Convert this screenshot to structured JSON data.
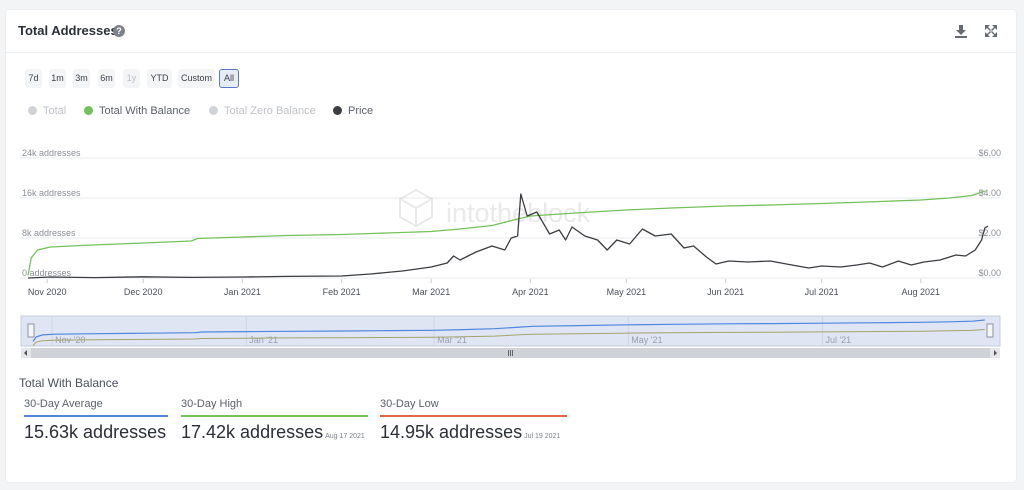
{
  "header": {
    "title": "Total Addresses",
    "help_icon": "question-circle-icon",
    "download_icon": "download-icon",
    "expand_icon": "expand-icon"
  },
  "ranges": [
    {
      "label": "7d",
      "state": "normal"
    },
    {
      "label": "1m",
      "state": "normal"
    },
    {
      "label": "3m",
      "state": "normal"
    },
    {
      "label": "6m",
      "state": "normal"
    },
    {
      "label": "1y",
      "state": "disabled"
    },
    {
      "label": "YTD",
      "state": "normal"
    },
    {
      "label": "Custom",
      "state": "normal"
    },
    {
      "label": "All",
      "state": "active"
    }
  ],
  "legend": [
    {
      "label": "Total",
      "color": "#cfd2d6",
      "active": false
    },
    {
      "label": "Total With Balance",
      "color": "#74c15a",
      "active": true
    },
    {
      "label": "Total Zero Balance",
      "color": "#cfd2d6",
      "active": false
    },
    {
      "label": "Price",
      "color": "#3b3d42",
      "active": true
    }
  ],
  "watermark": "intotheblock",
  "colors": {
    "with_balance": "#74c15a",
    "price": "#3b3d42",
    "navigator_blue": "#4f86e0",
    "navigator_olive": "#a3a46b",
    "average": "#4f86e0",
    "high": "#74c15a",
    "low": "#e0664a"
  },
  "chart_data": {
    "type": "line",
    "x_tick_labels": [
      "Nov 2020",
      "Dec 2020",
      "Jan 2021",
      "Feb 2021",
      "Mar 2021",
      "Apr 2021",
      "May 2021",
      "Jun 2021",
      "Jul 2021",
      "Aug 2021"
    ],
    "y_left_ticks": [
      "0 addresses",
      "8k addresses",
      "16k addresses",
      "24k addresses"
    ],
    "y_right_ticks": [
      "$0.00",
      "$2.00",
      "$4.00",
      "$6.00"
    ],
    "y_left_range": [
      0,
      24000
    ],
    "y_right_range": [
      0,
      6
    ],
    "x_range": [
      "2020-10-26",
      "2021-08-22"
    ],
    "grid": true,
    "series": [
      {
        "name": "Total With Balance",
        "axis": "left",
        "points": [
          [
            "2020-10-26",
            500
          ],
          [
            "2020-10-27",
            4000
          ],
          [
            "2020-10-29",
            5600
          ],
          [
            "2020-11-02",
            6200
          ],
          [
            "2020-11-15",
            6600
          ],
          [
            "2020-12-01",
            7000
          ],
          [
            "2020-12-16",
            7400
          ],
          [
            "2020-12-18",
            7900
          ],
          [
            "2021-01-01",
            8200
          ],
          [
            "2021-01-15",
            8500
          ],
          [
            "2021-02-01",
            8700
          ],
          [
            "2021-02-15",
            9000
          ],
          [
            "2021-03-01",
            9300
          ],
          [
            "2021-03-10",
            9800
          ],
          [
            "2021-03-20",
            10500
          ],
          [
            "2021-03-28",
            11800
          ],
          [
            "2021-04-01",
            12400
          ],
          [
            "2021-04-15",
            13000
          ],
          [
            "2021-05-01",
            13600
          ],
          [
            "2021-05-15",
            14000
          ],
          [
            "2021-06-01",
            14400
          ],
          [
            "2021-06-15",
            14600
          ],
          [
            "2021-07-01",
            14900
          ],
          [
            "2021-07-15",
            15200
          ],
          [
            "2021-08-01",
            15600
          ],
          [
            "2021-08-10",
            16000
          ],
          [
            "2021-08-17",
            16500
          ],
          [
            "2021-08-21",
            17400
          ]
        ]
      },
      {
        "name": "Price",
        "axis": "right",
        "points": [
          [
            "2020-10-26",
            0.0
          ],
          [
            "2020-11-02",
            0.05
          ],
          [
            "2020-11-16",
            0.02
          ],
          [
            "2020-12-01",
            0.06
          ],
          [
            "2020-12-16",
            0.03
          ],
          [
            "2021-01-01",
            0.05
          ],
          [
            "2021-01-15",
            0.08
          ],
          [
            "2021-02-01",
            0.1
          ],
          [
            "2021-02-10",
            0.2
          ],
          [
            "2021-02-20",
            0.35
          ],
          [
            "2021-03-01",
            0.55
          ],
          [
            "2021-03-06",
            0.75
          ],
          [
            "2021-03-08",
            1.1
          ],
          [
            "2021-03-10",
            0.9
          ],
          [
            "2021-03-15",
            1.3
          ],
          [
            "2021-03-20",
            1.6
          ],
          [
            "2021-03-24",
            1.4
          ],
          [
            "2021-03-26",
            2.0
          ],
          [
            "2021-03-28",
            2.1
          ],
          [
            "2021-03-29",
            4.2
          ],
          [
            "2021-03-31",
            3.1
          ],
          [
            "2021-04-03",
            3.3
          ],
          [
            "2021-04-07",
            2.2
          ],
          [
            "2021-04-10",
            2.4
          ],
          [
            "2021-04-12",
            1.9
          ],
          [
            "2021-04-14",
            2.55
          ],
          [
            "2021-04-18",
            2.1
          ],
          [
            "2021-04-22",
            1.9
          ],
          [
            "2021-04-25",
            1.4
          ],
          [
            "2021-04-28",
            1.9
          ],
          [
            "2021-05-02",
            1.7
          ],
          [
            "2021-05-06",
            2.45
          ],
          [
            "2021-05-10",
            2.1
          ],
          [
            "2021-05-15",
            2.2
          ],
          [
            "2021-05-19",
            1.5
          ],
          [
            "2021-05-22",
            1.6
          ],
          [
            "2021-05-26",
            1.05
          ],
          [
            "2021-05-29",
            0.7
          ],
          [
            "2021-06-02",
            0.85
          ],
          [
            "2021-06-08",
            0.8
          ],
          [
            "2021-06-15",
            0.85
          ],
          [
            "2021-06-20",
            0.7
          ],
          [
            "2021-06-27",
            0.5
          ],
          [
            "2021-07-01",
            0.6
          ],
          [
            "2021-07-07",
            0.55
          ],
          [
            "2021-07-12",
            0.65
          ],
          [
            "2021-07-16",
            0.75
          ],
          [
            "2021-07-20",
            0.55
          ],
          [
            "2021-07-25",
            0.85
          ],
          [
            "2021-07-29",
            0.65
          ],
          [
            "2021-08-02",
            0.8
          ],
          [
            "2021-08-07",
            0.9
          ],
          [
            "2021-08-12",
            1.15
          ],
          [
            "2021-08-15",
            1.1
          ],
          [
            "2021-08-18",
            1.4
          ],
          [
            "2021-08-20",
            1.9
          ],
          [
            "2021-08-21",
            2.5
          ],
          [
            "2021-08-22",
            2.6
          ]
        ]
      }
    ],
    "navigator": {
      "tick_labels": [
        "Nov '20",
        "Jan '21",
        "Mar '21",
        "May '21",
        "Jul '21"
      ]
    }
  },
  "stats": {
    "title": "Total With Balance",
    "items": [
      {
        "label": "30-Day Average",
        "value": "15.63k addresses",
        "date": ""
      },
      {
        "label": "30-Day High",
        "value": "17.42k addresses",
        "date": "Aug 17 2021"
      },
      {
        "label": "30-Day Low",
        "value": "14.95k addresses",
        "date": "Jul 19 2021"
      }
    ]
  }
}
